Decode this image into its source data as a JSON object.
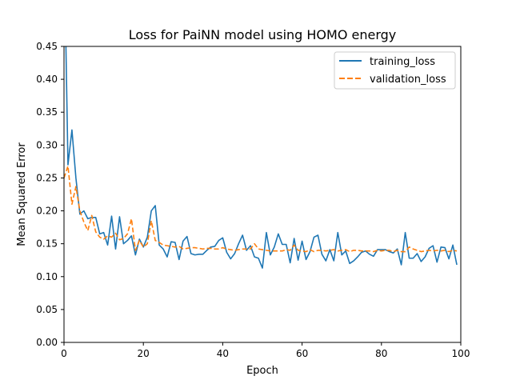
{
  "chart_data": {
    "type": "line",
    "title": "Loss for PaiNN model using HOMO energy",
    "xlabel": "Epoch",
    "ylabel": "Mean Squared Error",
    "xlim": [
      0,
      100
    ],
    "ylim": [
      0.0,
      0.45
    ],
    "xticks": [
      "0",
      "20",
      "40",
      "60",
      "80",
      "100"
    ],
    "yticks": [
      "0.00",
      "0.05",
      "0.10",
      "0.15",
      "0.20",
      "0.25",
      "0.30",
      "0.35",
      "0.40",
      "0.45"
    ],
    "grid": false,
    "legend_position": "top-right",
    "series": [
      {
        "name": "training_loss",
        "color": "#1f77b4",
        "style": "solid",
        "x": [
          0,
          1,
          2,
          3,
          4,
          5,
          6,
          7,
          8,
          9,
          10,
          11,
          12,
          13,
          14,
          15,
          16,
          17,
          18,
          19,
          20,
          21,
          22,
          23,
          24,
          25,
          26,
          27,
          28,
          29,
          30,
          31,
          32,
          33,
          34,
          35,
          36,
          37,
          38,
          39,
          40,
          41,
          42,
          43,
          44,
          45,
          46,
          47,
          48,
          49,
          50,
          51,
          52,
          53,
          54,
          55,
          56,
          57,
          58,
          59,
          60,
          61,
          62,
          63,
          64,
          65,
          66,
          67,
          68,
          69,
          70,
          71,
          72,
          73,
          74,
          75,
          76,
          77,
          78,
          79,
          80,
          81,
          82,
          83,
          84,
          85,
          86,
          87,
          88,
          89,
          90,
          91,
          92,
          93,
          94,
          95,
          96,
          97,
          98,
          99
        ],
        "y": [
          0.62,
          0.27,
          0.323,
          0.25,
          0.195,
          0.2,
          0.188,
          0.19,
          0.19,
          0.165,
          0.167,
          0.148,
          0.192,
          0.142,
          0.191,
          0.15,
          0.155,
          0.162,
          0.133,
          0.157,
          0.145,
          0.16,
          0.2,
          0.208,
          0.148,
          0.142,
          0.13,
          0.153,
          0.152,
          0.126,
          0.154,
          0.161,
          0.135,
          0.133,
          0.134,
          0.134,
          0.14,
          0.145,
          0.146,
          0.155,
          0.159,
          0.137,
          0.127,
          0.135,
          0.15,
          0.163,
          0.14,
          0.147,
          0.13,
          0.128,
          0.113,
          0.167,
          0.133,
          0.145,
          0.165,
          0.149,
          0.149,
          0.121,
          0.158,
          0.125,
          0.154,
          0.126,
          0.138,
          0.16,
          0.163,
          0.134,
          0.124,
          0.141,
          0.124,
          0.167,
          0.133,
          0.139,
          0.12,
          0.124,
          0.13,
          0.137,
          0.139,
          0.134,
          0.131,
          0.141,
          0.141,
          0.141,
          0.138,
          0.136,
          0.142,
          0.118,
          0.167,
          0.128,
          0.128,
          0.135,
          0.123,
          0.13,
          0.143,
          0.147,
          0.122,
          0.145,
          0.144,
          0.127,
          0.148,
          0.118
        ]
      },
      {
        "name": "validation_loss",
        "color": "#ff7f0e",
        "style": "dashed",
        "x": [
          0,
          1,
          2,
          3,
          4,
          5,
          6,
          7,
          8,
          9,
          10,
          11,
          12,
          13,
          14,
          15,
          16,
          17,
          18,
          19,
          20,
          21,
          22,
          23,
          24,
          25,
          26,
          27,
          28,
          29,
          30,
          31,
          32,
          33,
          34,
          35,
          36,
          37,
          38,
          39,
          40,
          41,
          42,
          43,
          44,
          45,
          46,
          47,
          48,
          49,
          50,
          51,
          52,
          53,
          54,
          55,
          56,
          57,
          58,
          59,
          60,
          61,
          62,
          63,
          64,
          65,
          66,
          67,
          68,
          69,
          70,
          71,
          72,
          73,
          74,
          75,
          76,
          77,
          78,
          79,
          80,
          81,
          82,
          83,
          84,
          85,
          86,
          87,
          88,
          89,
          90,
          91,
          92,
          93,
          94,
          95,
          96,
          97,
          98,
          99
        ],
        "y": [
          0.25,
          0.268,
          0.21,
          0.237,
          0.2,
          0.183,
          0.17,
          0.193,
          0.168,
          0.16,
          0.157,
          0.162,
          0.16,
          0.166,
          0.156,
          0.158,
          0.165,
          0.188,
          0.14,
          0.155,
          0.145,
          0.15,
          0.185,
          0.155,
          0.152,
          0.148,
          0.147,
          0.146,
          0.145,
          0.146,
          0.142,
          0.143,
          0.144,
          0.144,
          0.143,
          0.142,
          0.143,
          0.143,
          0.142,
          0.142,
          0.144,
          0.142,
          0.141,
          0.14,
          0.141,
          0.142,
          0.142,
          0.142,
          0.15,
          0.142,
          0.141,
          0.14,
          0.139,
          0.139,
          0.139,
          0.139,
          0.141,
          0.14,
          0.148,
          0.14,
          0.139,
          0.138,
          0.141,
          0.138,
          0.14,
          0.14,
          0.139,
          0.14,
          0.141,
          0.139,
          0.14,
          0.141,
          0.138,
          0.14,
          0.14,
          0.139,
          0.139,
          0.139,
          0.138,
          0.14,
          0.139,
          0.14,
          0.14,
          0.138,
          0.14,
          0.138,
          0.138,
          0.145,
          0.142,
          0.14,
          0.138,
          0.139,
          0.14,
          0.139,
          0.14,
          0.139,
          0.14,
          0.138,
          0.14,
          0.139
        ]
      }
    ]
  }
}
